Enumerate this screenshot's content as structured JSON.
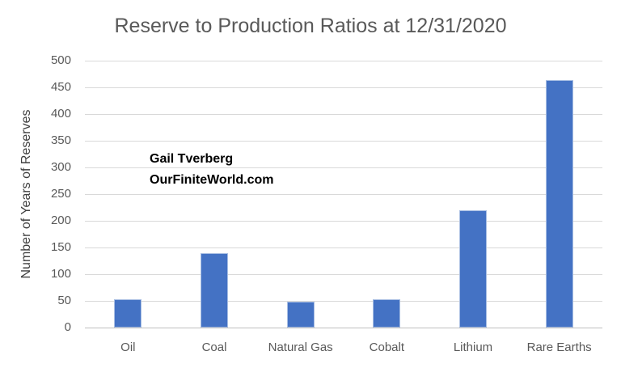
{
  "chart_data": {
    "type": "bar",
    "title": "Reserve to Production Ratios at 12/31/2020",
    "xlabel": "",
    "ylabel": "Number of Years of Reserves",
    "categories": [
      "Oil",
      "Coal",
      "Natural Gas",
      "Cobalt",
      "Lithium",
      "Rare Earths"
    ],
    "values": [
      53,
      139,
      48,
      53,
      220,
      463
    ],
    "ylim": [
      0,
      500
    ],
    "ytick_step": 50,
    "grid": true,
    "legend_position": "none",
    "colors": {
      "bar_fill": "#4472C4",
      "bar_edge": "#b4c7e7",
      "gridline": "#d9d9d9",
      "axis_line": "#bfbfbf",
      "title_text": "#595959",
      "tick_text": "#595959",
      "annotation_text": "#000000",
      "background": "#ffffff"
    },
    "annotation": {
      "line1": "Gail Tverberg",
      "line2": "OurFiniteWorld.com"
    }
  }
}
